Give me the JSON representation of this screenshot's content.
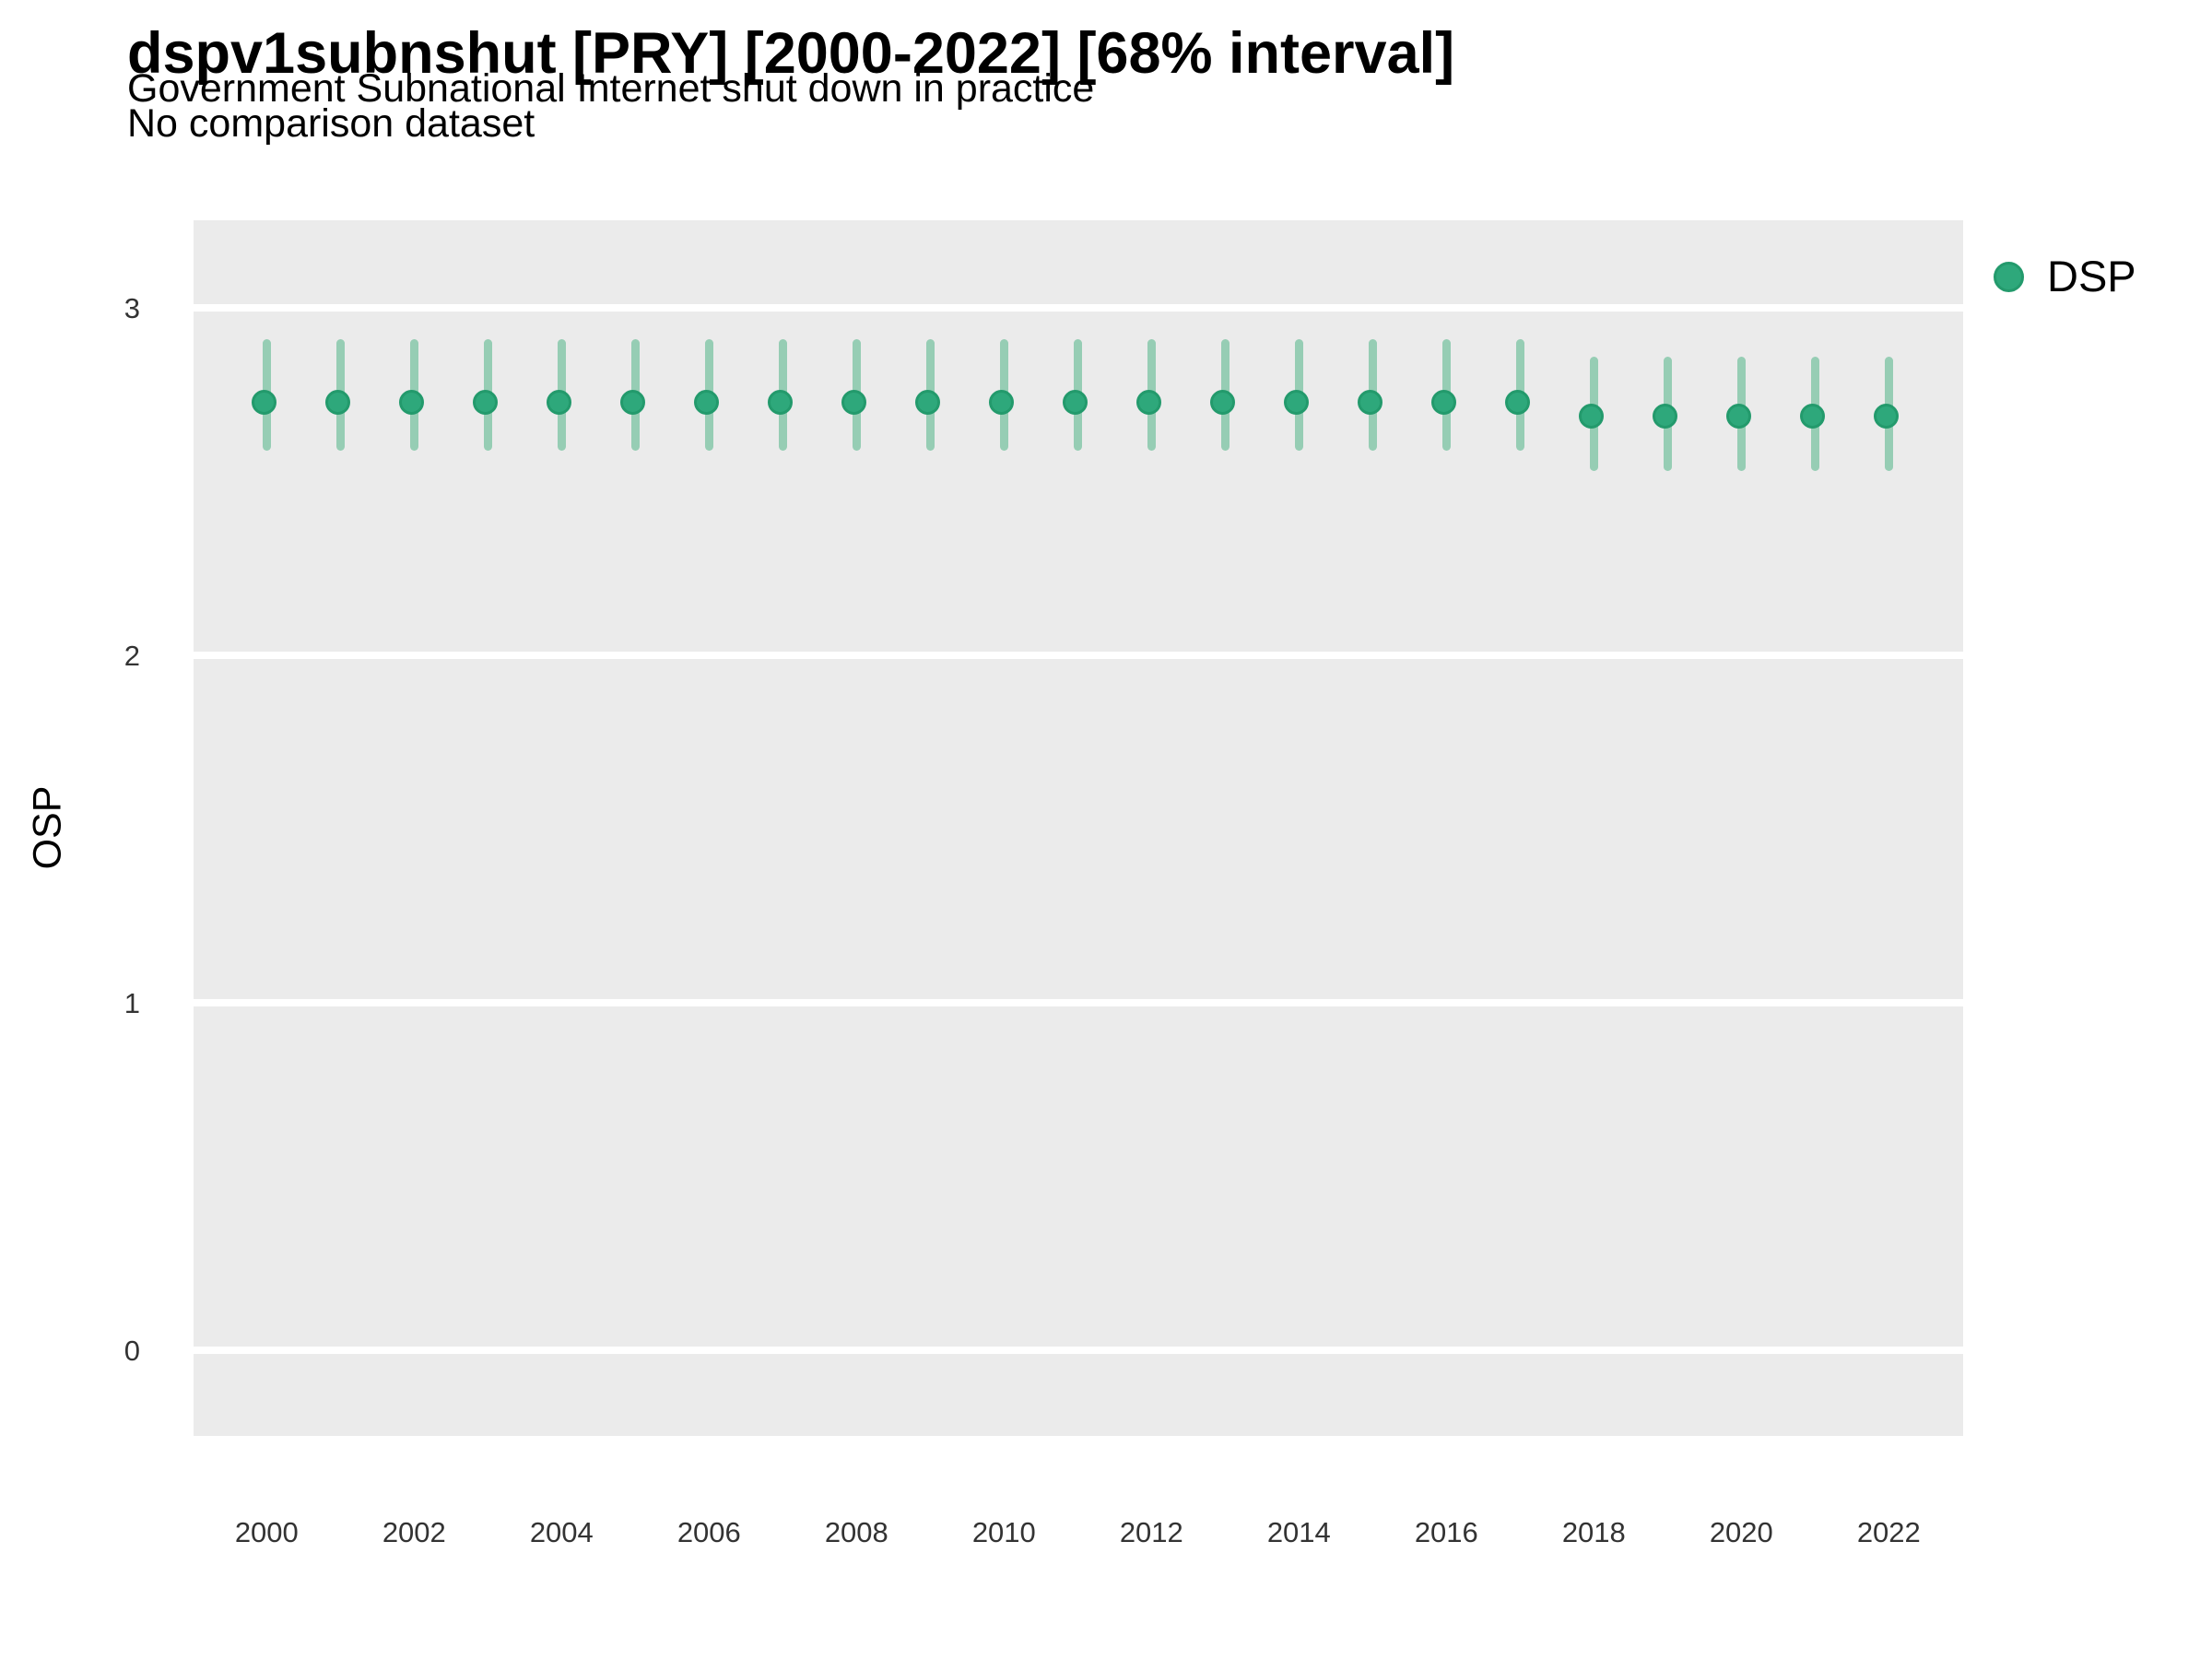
{
  "header": {
    "title": "dspv1subnshut [PRY] [2000-2022] [68% interval]",
    "subtitle": "Government Subnational Internet shut down in practice",
    "note": "No comparison dataset"
  },
  "colors": {
    "point_fill": "#2EA87B",
    "point_stroke": "#239A6C",
    "interval_bar": "#96CDB4",
    "panel_background": "#EBEBEB",
    "gridline": "#FFFFFF",
    "tick_text": "#333333"
  },
  "legend": {
    "label": "DSP",
    "position": "right"
  },
  "chart_data": {
    "type": "scatter",
    "title": "dspv1subnshut [PRY] [2000-2022] [68% interval]",
    "subtitle": "Government Subnational Internet shut down in practice",
    "note": "No comparison dataset",
    "xlabel": "",
    "ylabel": "OSP",
    "interval": "68%",
    "grid": "horizontal-major-only",
    "legend_position": "right",
    "xlim": [
      1999,
      2023
    ],
    "ylim": [
      -0.25,
      3.25
    ],
    "x_ticks": [
      2000,
      2002,
      2004,
      2006,
      2008,
      2010,
      2012,
      2014,
      2016,
      2018,
      2020,
      2022
    ],
    "y_ticks": [
      3,
      2,
      1,
      0
    ],
    "series": [
      {
        "name": "DSP",
        "color": "#2EA87B",
        "points": [
          {
            "year": 2000,
            "est": 2.72,
            "lo": 2.59,
            "hi": 2.91
          },
          {
            "year": 2001,
            "est": 2.72,
            "lo": 2.59,
            "hi": 2.91
          },
          {
            "year": 2002,
            "est": 2.72,
            "lo": 2.59,
            "hi": 2.91
          },
          {
            "year": 2003,
            "est": 2.72,
            "lo": 2.59,
            "hi": 2.91
          },
          {
            "year": 2004,
            "est": 2.72,
            "lo": 2.59,
            "hi": 2.91
          },
          {
            "year": 2005,
            "est": 2.72,
            "lo": 2.59,
            "hi": 2.91
          },
          {
            "year": 2006,
            "est": 2.72,
            "lo": 2.59,
            "hi": 2.91
          },
          {
            "year": 2007,
            "est": 2.72,
            "lo": 2.59,
            "hi": 2.91
          },
          {
            "year": 2008,
            "est": 2.72,
            "lo": 2.59,
            "hi": 2.91
          },
          {
            "year": 2009,
            "est": 2.72,
            "lo": 2.59,
            "hi": 2.91
          },
          {
            "year": 2010,
            "est": 2.72,
            "lo": 2.59,
            "hi": 2.91
          },
          {
            "year": 2011,
            "est": 2.72,
            "lo": 2.59,
            "hi": 2.91
          },
          {
            "year": 2012,
            "est": 2.72,
            "lo": 2.59,
            "hi": 2.91
          },
          {
            "year": 2013,
            "est": 2.72,
            "lo": 2.59,
            "hi": 2.91
          },
          {
            "year": 2014,
            "est": 2.72,
            "lo": 2.59,
            "hi": 2.91
          },
          {
            "year": 2015,
            "est": 2.72,
            "lo": 2.59,
            "hi": 2.91
          },
          {
            "year": 2016,
            "est": 2.72,
            "lo": 2.59,
            "hi": 2.91
          },
          {
            "year": 2017,
            "est": 2.72,
            "lo": 2.59,
            "hi": 2.91
          },
          {
            "year": 2018,
            "est": 2.68,
            "lo": 2.53,
            "hi": 2.86
          },
          {
            "year": 2019,
            "est": 2.68,
            "lo": 2.53,
            "hi": 2.86
          },
          {
            "year": 2020,
            "est": 2.68,
            "lo": 2.53,
            "hi": 2.86
          },
          {
            "year": 2021,
            "est": 2.68,
            "lo": 2.53,
            "hi": 2.86
          },
          {
            "year": 2022,
            "est": 2.68,
            "lo": 2.53,
            "hi": 2.86
          }
        ]
      }
    ]
  }
}
